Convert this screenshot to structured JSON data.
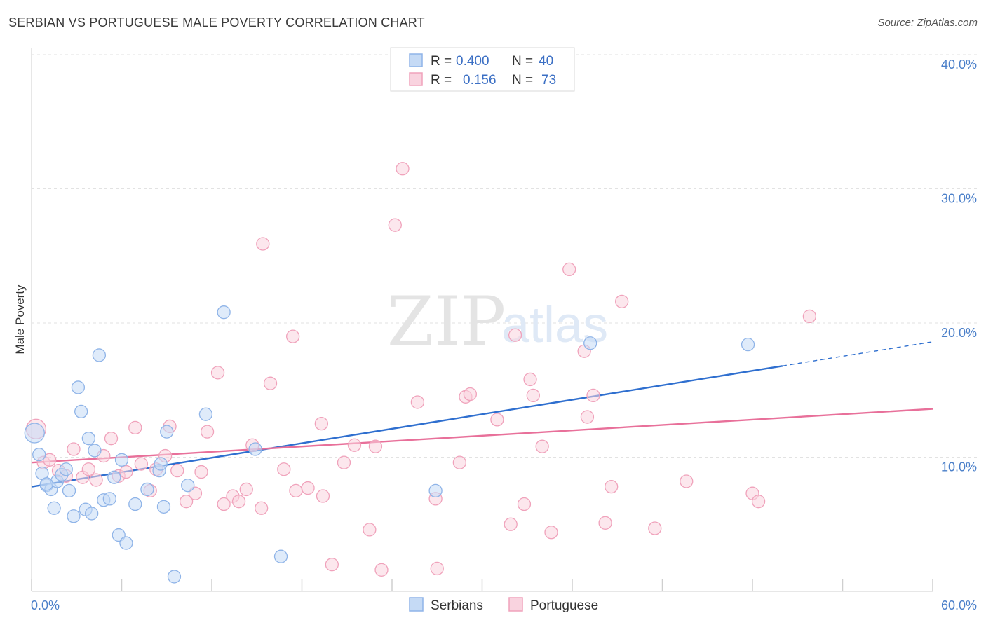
{
  "title": "SERBIAN VS PORTUGUESE MALE POVERTY CORRELATION CHART",
  "source": "Source: ZipAtlas.com",
  "watermark": {
    "zip": "ZIP",
    "atlas": "atlas"
  },
  "chart_data": {
    "type": "scatter",
    "ylabel": "Male Poverty",
    "xlabel": "",
    "xlim": [
      0,
      60
    ],
    "ylim": [
      0,
      40
    ],
    "x_tick_labels": [
      {
        "value": 0,
        "label": "0.0%"
      },
      {
        "value": 60,
        "label": "60.0%"
      }
    ],
    "y_tick_labels": [
      {
        "value": 10,
        "label": "10.0%"
      },
      {
        "value": 20,
        "label": "20.0%"
      },
      {
        "value": 30,
        "label": "30.0%"
      },
      {
        "value": 40,
        "label": "40.0%"
      }
    ],
    "grid": true,
    "legend_position": "top-center",
    "stats_legend": [
      {
        "r_label": "R =",
        "r_value": "0.400",
        "n_label": "N =",
        "n_value": "40"
      },
      {
        "r_label": "R =",
        "r_value": "0.156",
        "n_label": "N =",
        "n_value": "73"
      }
    ],
    "series": [
      {
        "name": "Serbians",
        "color": "#8fb4e8",
        "fill": "#c5daf5",
        "trend_color": "#2f6fcf",
        "trend": {
          "x0": 0,
          "y0": 7.8,
          "x1": 50,
          "y1": 16.8,
          "dashed_to_x": 60,
          "dashed_to_y": 18.6
        },
        "points": [
          [
            0.2,
            11.8,
            14
          ],
          [
            0.5,
            10.2,
            9
          ],
          [
            0.7,
            8.8,
            9
          ],
          [
            1.0,
            7.9,
            9
          ],
          [
            1.3,
            7.6,
            9
          ],
          [
            1.5,
            6.2,
            9
          ],
          [
            1.7,
            8.2,
            9
          ],
          [
            2.0,
            8.7,
            9
          ],
          [
            2.3,
            9.1,
            9
          ],
          [
            2.5,
            7.5,
            9
          ],
          [
            2.8,
            5.6,
            9
          ],
          [
            3.1,
            15.2,
            9
          ],
          [
            3.3,
            13.4,
            9
          ],
          [
            3.6,
            6.1,
            9
          ],
          [
            3.8,
            11.4,
            9
          ],
          [
            4.0,
            5.8,
            9
          ],
          [
            4.2,
            10.5,
            9
          ],
          [
            4.5,
            17.6,
            9
          ],
          [
            4.8,
            6.8,
            9
          ],
          [
            5.2,
            6.9,
            9
          ],
          [
            5.5,
            8.5,
            9
          ],
          [
            5.8,
            4.2,
            9
          ],
          [
            6.0,
            9.8,
            9
          ],
          [
            6.3,
            3.6,
            9
          ],
          [
            6.9,
            6.5,
            9
          ],
          [
            7.7,
            7.6,
            9
          ],
          [
            8.5,
            9.0,
            9
          ],
          [
            8.6,
            9.5,
            9
          ],
          [
            8.8,
            6.3,
            9
          ],
          [
            9.0,
            11.9,
            9
          ],
          [
            9.5,
            1.1,
            9
          ],
          [
            10.4,
            7.9,
            9
          ],
          [
            11.6,
            13.2,
            9
          ],
          [
            12.8,
            20.8,
            9
          ],
          [
            14.9,
            10.6,
            9
          ],
          [
            16.6,
            2.6,
            9
          ],
          [
            26.9,
            7.5,
            9
          ],
          [
            37.2,
            18.5,
            9
          ],
          [
            47.7,
            18.4,
            9
          ],
          [
            1.0,
            8.0,
            9
          ]
        ]
      },
      {
        "name": "Portuguese",
        "color": "#f0a2bb",
        "fill": "#f9d3df",
        "trend_color": "#e8709a",
        "trend": {
          "x0": 0,
          "y0": 9.6,
          "x1": 60,
          "y1": 13.6
        },
        "points": [
          [
            0.3,
            12.1,
            14
          ],
          [
            0.8,
            9.6,
            9
          ],
          [
            1.2,
            9.8,
            9
          ],
          [
            1.8,
            9.0,
            9
          ],
          [
            2.3,
            8.6,
            9
          ],
          [
            2.8,
            10.6,
            9
          ],
          [
            3.4,
            8.5,
            9
          ],
          [
            3.8,
            9.1,
            9
          ],
          [
            4.3,
            8.3,
            9
          ],
          [
            4.8,
            10.1,
            9
          ],
          [
            5.3,
            11.4,
            9
          ],
          [
            5.8,
            8.6,
            9
          ],
          [
            6.3,
            8.9,
            9
          ],
          [
            6.9,
            12.2,
            9
          ],
          [
            7.3,
            9.5,
            9
          ],
          [
            7.9,
            7.5,
            9
          ],
          [
            8.3,
            9.1,
            9
          ],
          [
            8.9,
            10.1,
            9
          ],
          [
            9.2,
            12.3,
            9
          ],
          [
            9.7,
            9.0,
            9
          ],
          [
            10.3,
            6.7,
            9
          ],
          [
            10.9,
            7.3,
            9
          ],
          [
            11.3,
            8.9,
            9
          ],
          [
            11.7,
            11.9,
            9
          ],
          [
            12.4,
            16.3,
            9
          ],
          [
            12.8,
            6.5,
            9
          ],
          [
            13.4,
            7.1,
            9
          ],
          [
            13.8,
            6.7,
            9
          ],
          [
            14.3,
            7.6,
            9
          ],
          [
            14.7,
            10.9,
            9
          ],
          [
            15.3,
            6.2,
            9
          ],
          [
            15.4,
            25.9,
            9
          ],
          [
            15.9,
            15.5,
            9
          ],
          [
            16.8,
            9.1,
            9
          ],
          [
            17.4,
            19.0,
            9
          ],
          [
            18.4,
            7.7,
            9
          ],
          [
            19.4,
            7.1,
            9
          ],
          [
            19.3,
            12.5,
            9
          ],
          [
            20.0,
            2.0,
            9
          ],
          [
            20.8,
            9.6,
            9
          ],
          [
            21.5,
            10.9,
            9
          ],
          [
            22.5,
            4.6,
            9
          ],
          [
            22.9,
            10.8,
            9
          ],
          [
            23.3,
            1.6,
            9
          ],
          [
            24.2,
            27.3,
            9
          ],
          [
            24.7,
            31.5,
            9
          ],
          [
            25.7,
            14.1,
            9
          ],
          [
            26.9,
            6.9,
            9
          ],
          [
            27.0,
            1.7,
            9
          ],
          [
            28.5,
            9.6,
            9
          ],
          [
            28.9,
            14.5,
            9
          ],
          [
            29.2,
            14.7,
            9
          ],
          [
            31.0,
            12.8,
            9
          ],
          [
            31.9,
            5.0,
            9
          ],
          [
            32.2,
            19.1,
            9
          ],
          [
            32.8,
            6.5,
            9
          ],
          [
            33.4,
            14.6,
            9
          ],
          [
            33.2,
            15.8,
            9
          ],
          [
            34.0,
            10.8,
            9
          ],
          [
            34.6,
            4.4,
            9
          ],
          [
            35.8,
            24.0,
            9
          ],
          [
            36.8,
            17.9,
            9
          ],
          [
            37.0,
            13.0,
            9
          ],
          [
            37.4,
            14.6,
            9
          ],
          [
            38.2,
            5.1,
            9
          ],
          [
            38.6,
            7.8,
            9
          ],
          [
            39.3,
            21.6,
            9
          ],
          [
            41.5,
            4.7,
            9
          ],
          [
            43.6,
            8.2,
            9
          ],
          [
            48.0,
            7.3,
            9
          ],
          [
            48.4,
            6.7,
            9
          ],
          [
            51.8,
            20.5,
            9
          ],
          [
            17.6,
            7.5,
            9
          ]
        ]
      }
    ]
  }
}
